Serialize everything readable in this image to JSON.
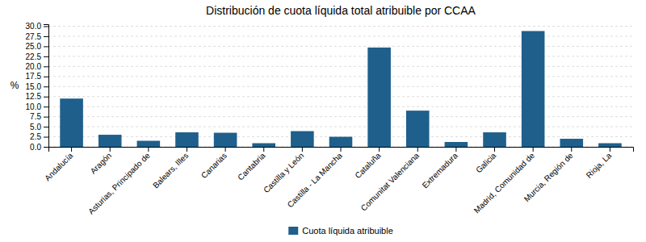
{
  "chart_data": {
    "type": "bar",
    "title": "Distribución de cuota líquida total atribuible por CCAA",
    "ylabel": "%",
    "categories": [
      "Andalucía",
      "Aragón",
      "Asturias, Principado de",
      "Balears, Illes",
      "Canarias",
      "Cantabria",
      "Castilla y León",
      "Castilla - La Mancha",
      "Cataluña",
      "Comunitat Valenciana",
      "Extremadura",
      "Galicia",
      "Madrid, Comunidad de",
      "Murcia, Región de",
      "Rioja, La"
    ],
    "series": [
      {
        "name": "Cuota líquida atribuible",
        "color": "#1f5f8b",
        "values": [
          12.0,
          3.0,
          1.5,
          3.6,
          3.5,
          0.9,
          3.9,
          2.5,
          24.7,
          9.0,
          1.2,
          3.6,
          28.8,
          2.0,
          0.9
        ]
      }
    ],
    "ylim": [
      0,
      30.5
    ],
    "yticks": [
      {
        "value": 0.0,
        "label": "0.0"
      },
      2.5,
      {
        "value": 5.0,
        "label": "5.0"
      },
      7.5,
      {
        "value": 10.0,
        "label": "10.0"
      },
      12.5,
      {
        "value": 15.0,
        "label": "15.0"
      },
      17.5,
      {
        "value": 20.0,
        "label": "20.0"
      },
      22.5,
      {
        "value": 25.0,
        "label": "25.0"
      },
      27.5,
      {
        "value": 30.0,
        "label": "30.0"
      }
    ],
    "grid": true,
    "legend": "bottom"
  }
}
